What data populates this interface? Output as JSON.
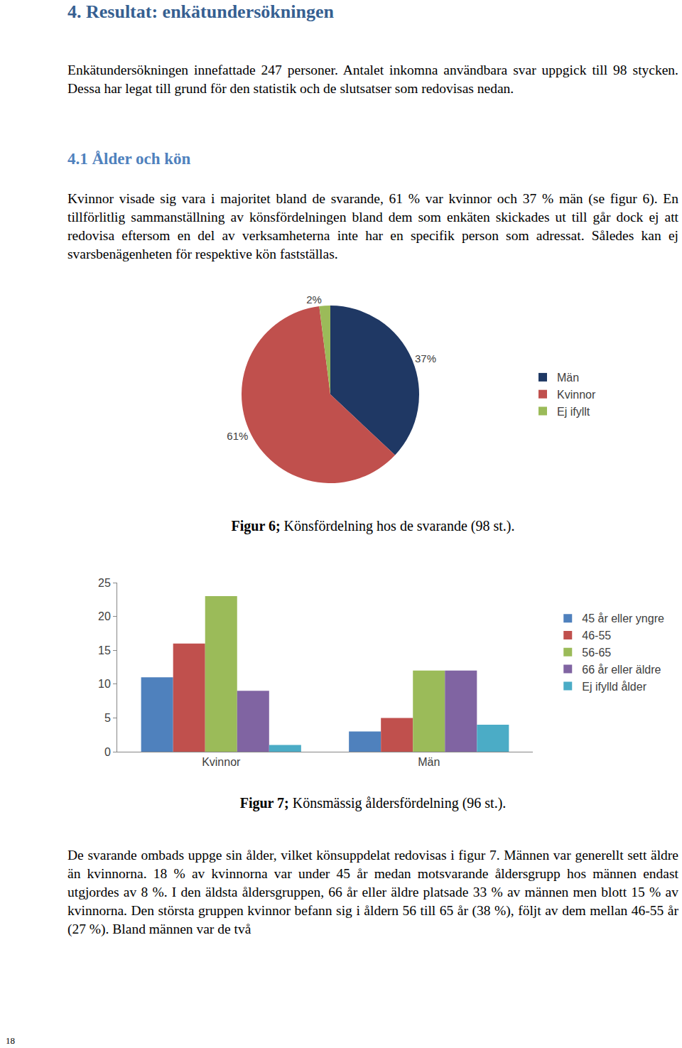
{
  "page": {
    "heading": "4. Resultat: enkätundersökningen",
    "intro": "Enkätundersökningen innefattade 247 personer. Antalet inkomna användbara svar uppgick till 98 stycken. Dessa har legat till grund för den statistik och de slutsatser som redovisas nedan.",
    "section_heading": "4.1 Ålder och kön",
    "section_paragraph": "Kvinnor visade sig vara i majoritet bland de svarande, 61 % var kvinnor och 37 % män (se figur 6). En tillförlitlig sammanställning av könsfördelningen bland dem som enkäten skickades ut till går dock ej att redovisa eftersom en del av verksamheterna inte har en specifik person som adressat. Således kan ej svarsbenägenheten för respektive kön fastställas.",
    "figures": [
      {
        "label": "Figur 6;",
        "caption": "Könsfördelning hos de svarande (98 st.)."
      },
      {
        "label": "Figur 7;",
        "caption": "Könsmässig åldersfördelning (96 st.)."
      }
    ],
    "closing_paragraph": "De svarande ombads uppge sin ålder, vilket könsuppdelat redovisas i figur 7. Männen var generellt sett äldre än kvinnorna. 18 % av kvinnorna var under 45 år medan motsvarande åldersgrupp hos männen endast utgjordes av 8 %. I den äldsta åldersgruppen, 66 år eller äldre platsade 33 % av männen men blott 15 % av kvinnorna. Den största gruppen kvinnor befann sig i åldern 56 till 65 år (38 %), följt av dem mellan 46-55 år (27 %). Bland männen var de två",
    "page_number": "18"
  },
  "chart_data": [
    {
      "type": "pie",
      "categories": [
        "Män",
        "Kvinnor",
        "Ej ifyllt"
      ],
      "values": [
        37,
        61,
        2
      ],
      "value_labels": [
        "37%",
        "61%",
        "2%"
      ],
      "colors": [
        "#1f3864",
        "#c0504d",
        "#9bbb59"
      ],
      "data_labels": true,
      "legend": "right"
    },
    {
      "type": "bar",
      "categories": [
        "Kvinnor",
        "Män"
      ],
      "series": [
        {
          "name": "45 år eller yngre",
          "color": "#4f81bd",
          "values": [
            11,
            3
          ]
        },
        {
          "name": "46-55",
          "color": "#c0504d",
          "values": [
            16,
            5
          ]
        },
        {
          "name": "56-65",
          "color": "#9bbb59",
          "values": [
            23,
            12
          ]
        },
        {
          "name": "66 år eller äldre",
          "color": "#8064a2",
          "values": [
            9,
            12
          ]
        },
        {
          "name": "Ej ifylld ålder",
          "color": "#4bacc6",
          "values": [
            1,
            4
          ]
        }
      ],
      "ylim": [
        0,
        25
      ],
      "yticks": [
        0,
        5,
        10,
        15,
        20,
        25
      ],
      "grid": false,
      "legend": "right"
    }
  ]
}
